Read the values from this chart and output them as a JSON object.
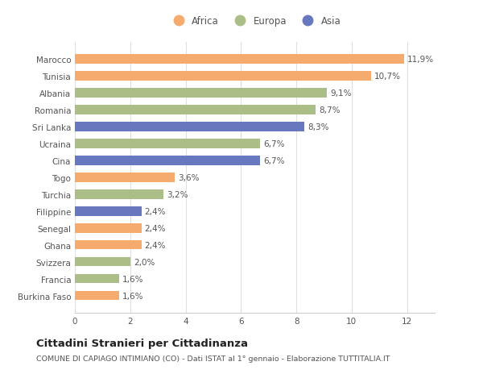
{
  "categories": [
    "Burkina Faso",
    "Francia",
    "Svizzera",
    "Ghana",
    "Senegal",
    "Filippine",
    "Turchia",
    "Togo",
    "Cina",
    "Ucraina",
    "Sri Lanka",
    "Romania",
    "Albania",
    "Tunisia",
    "Marocco"
  ],
  "values": [
    1.6,
    1.6,
    2.0,
    2.4,
    2.4,
    2.4,
    3.2,
    3.6,
    6.7,
    6.7,
    8.3,
    8.7,
    9.1,
    10.7,
    11.9
  ],
  "continents": [
    "Africa",
    "Europa",
    "Europa",
    "Africa",
    "Africa",
    "Asia",
    "Europa",
    "Africa",
    "Asia",
    "Europa",
    "Asia",
    "Europa",
    "Europa",
    "Africa",
    "Africa"
  ],
  "colors": {
    "Africa": "#F5AA6E",
    "Europa": "#ABBE87",
    "Asia": "#6878BE"
  },
  "xlim": [
    0,
    13.0
  ],
  "xticks": [
    0,
    2,
    4,
    6,
    8,
    10,
    12
  ],
  "title": "Cittadini Stranieri per Cittadinanza",
  "subtitle": "COMUNE DI CAPIAGO INTIMIANO (CO) - Dati ISTAT al 1° gennaio - Elaborazione TUTTITALIA.IT",
  "bg_color": "#ffffff",
  "bar_height": 0.55,
  "tick_fontsize": 7.5,
  "value_fontsize": 7.5,
  "legend_fontsize": 8.5,
  "title_fontsize": 9.5,
  "subtitle_fontsize": 6.8
}
